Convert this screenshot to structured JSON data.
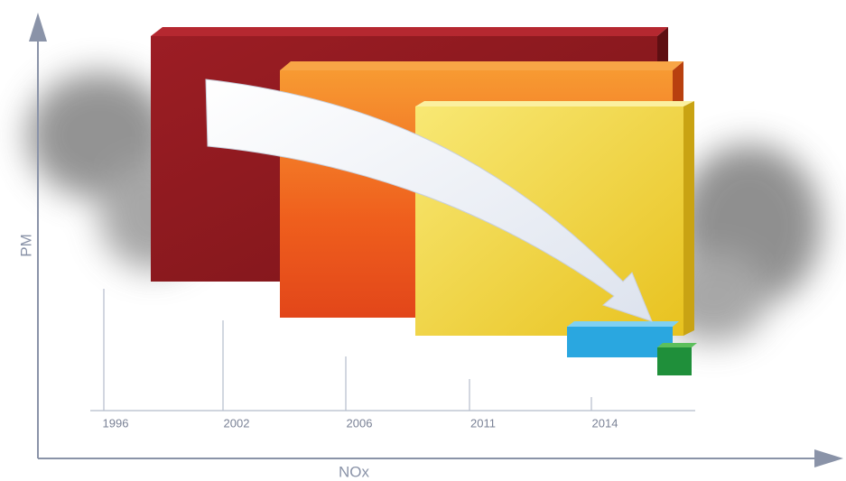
{
  "axes": {
    "y_label": "PM",
    "x_label": "NOx"
  },
  "years": [
    "1996",
    "2002",
    "2006",
    "2011",
    "2014"
  ]
}
